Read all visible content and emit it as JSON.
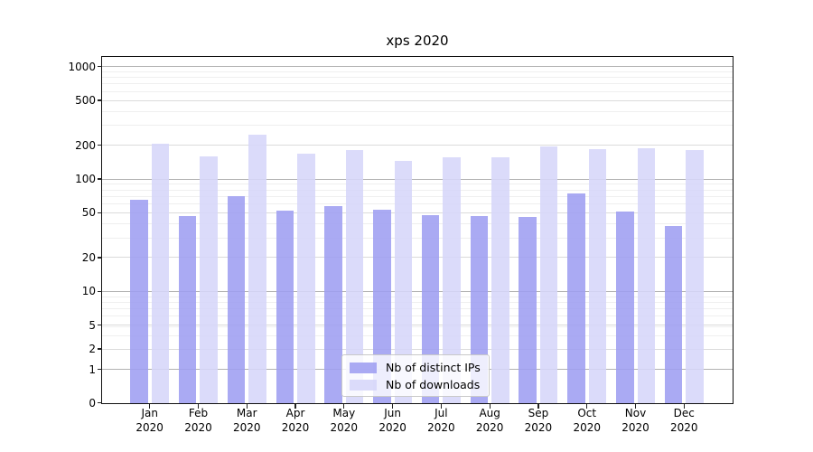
{
  "chart_data": {
    "type": "bar",
    "title": "xps 2020",
    "year": "2020",
    "categories": [
      "Jan",
      "Feb",
      "Mar",
      "Apr",
      "May",
      "Jun",
      "Jul",
      "Aug",
      "Sep",
      "Oct",
      "Nov",
      "Dec"
    ],
    "series": [
      {
        "name": "Nb of distinct IPs",
        "color": "#9e9ef1",
        "values": [
          65,
          47,
          70,
          52,
          57,
          53,
          48,
          47,
          46,
          75,
          51,
          38
        ]
      },
      {
        "name": "Nb of downloads",
        "color": "#d6d6f9",
        "values": [
          207,
          158,
          246,
          167,
          181,
          144,
          155,
          156,
          196,
          185,
          187,
          181
        ]
      }
    ],
    "y_axis": {
      "scale": "symlog",
      "tick_labels": [
        "0",
        "1",
        "2",
        "5",
        "10",
        "20",
        "50",
        "100",
        "200",
        "500",
        "1000"
      ]
    },
    "legend": {
      "position": "lower center"
    },
    "grid": "horizontal log gridlines with minors"
  },
  "colors": {
    "major_grid": "#b2b2b2",
    "mid_grid": "#dbdbdb",
    "minor_grid": "#efefef",
    "spine": "#111111",
    "background": "#ffffff"
  }
}
